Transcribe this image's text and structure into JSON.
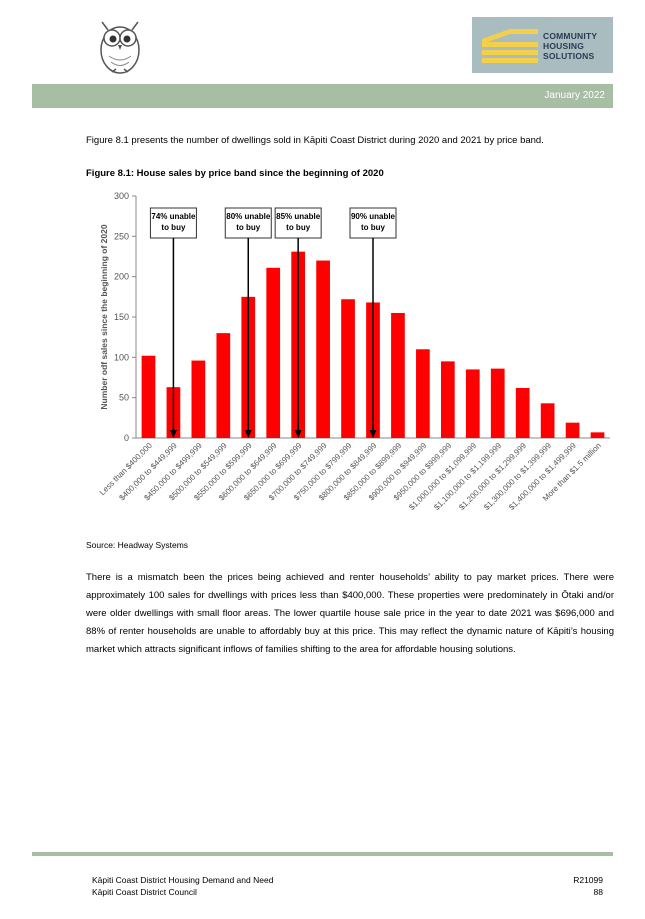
{
  "header": {
    "logo_brand_lines": [
      "COMMUNITY",
      "HOUSING",
      "SOLUTIONS"
    ],
    "date": "January 2022",
    "band_color": "#a7bea5"
  },
  "intro_text": "Figure 8.1 presents the number of dwellings sold in Kāpiti Coast District during 2020 and 2021 by price band.",
  "figure_title": "Figure 8.1:  House sales by price band since the beginning of 2020",
  "chart_data": {
    "type": "bar",
    "title": "",
    "ylabel": "Number odf sales since the beginning of 2020",
    "xlabel": "",
    "ylim": [
      0,
      300
    ],
    "yticks": [
      0,
      50,
      100,
      150,
      200,
      250,
      300
    ],
    "grid": false,
    "bar_color": "#ff0000",
    "categories": [
      "Less than $400,000",
      "$400,000 to $449,999",
      "$450,000 to $499,999",
      "$500,000 to $549,999",
      "$550,000 to $599,999",
      "$600,000 to $649,999",
      "$650,000 to $699,999",
      "$700,000 to $749,999",
      "$750,000 to $799,999",
      "$800,000 to $849,999",
      "$850,000 to $899,999",
      "$900,000 to $949,999",
      "$950,000 to $999,999",
      "$1,000,000 to $1,099,999",
      "$1,100,000 to $1,199,999",
      "$1,200,000 to $1,299,999",
      "$1,300,000 to $1,399,999",
      "$1,400,000 to $1,499,999",
      "More than $1.5 million"
    ],
    "values": [
      102,
      63,
      96,
      130,
      175,
      211,
      231,
      220,
      172,
      168,
      155,
      110,
      95,
      85,
      86,
      62,
      43,
      19,
      7
    ],
    "annotations": [
      {
        "text": [
          "74% unable",
          "to buy"
        ],
        "category_index": 1
      },
      {
        "text": [
          "80% unable",
          "to buy"
        ],
        "category_index": 4
      },
      {
        "text": [
          "85% unable",
          "to buy"
        ],
        "category_index": 6
      },
      {
        "text": [
          "90% unable",
          "to buy"
        ],
        "category_index": 9
      }
    ]
  },
  "source_text": "Source:  Headway Systems",
  "body_text": "There is a mismatch been the prices being achieved and renter households’ ability to pay market prices.  There were approximately 100 sales for dwellings with prices less than $400,000.  These properties were predominately in Ōtaki and/or were older dwellings with small floor areas.  The lower quartile house sale price in the year to date 2021 was $696,000 and 88% of renter households are unable to affordably buy at this price.  This may reflect the dynamic nature of Kāpiti’s housing market which attracts significant inflows of families shifting to the area for affordable housing solutions.",
  "footer": {
    "doc_title": "Kāpiti Coast District Housing Demand and Need",
    "org": "Kāpiti Coast District Council",
    "ref": "R21099",
    "page": "88"
  }
}
